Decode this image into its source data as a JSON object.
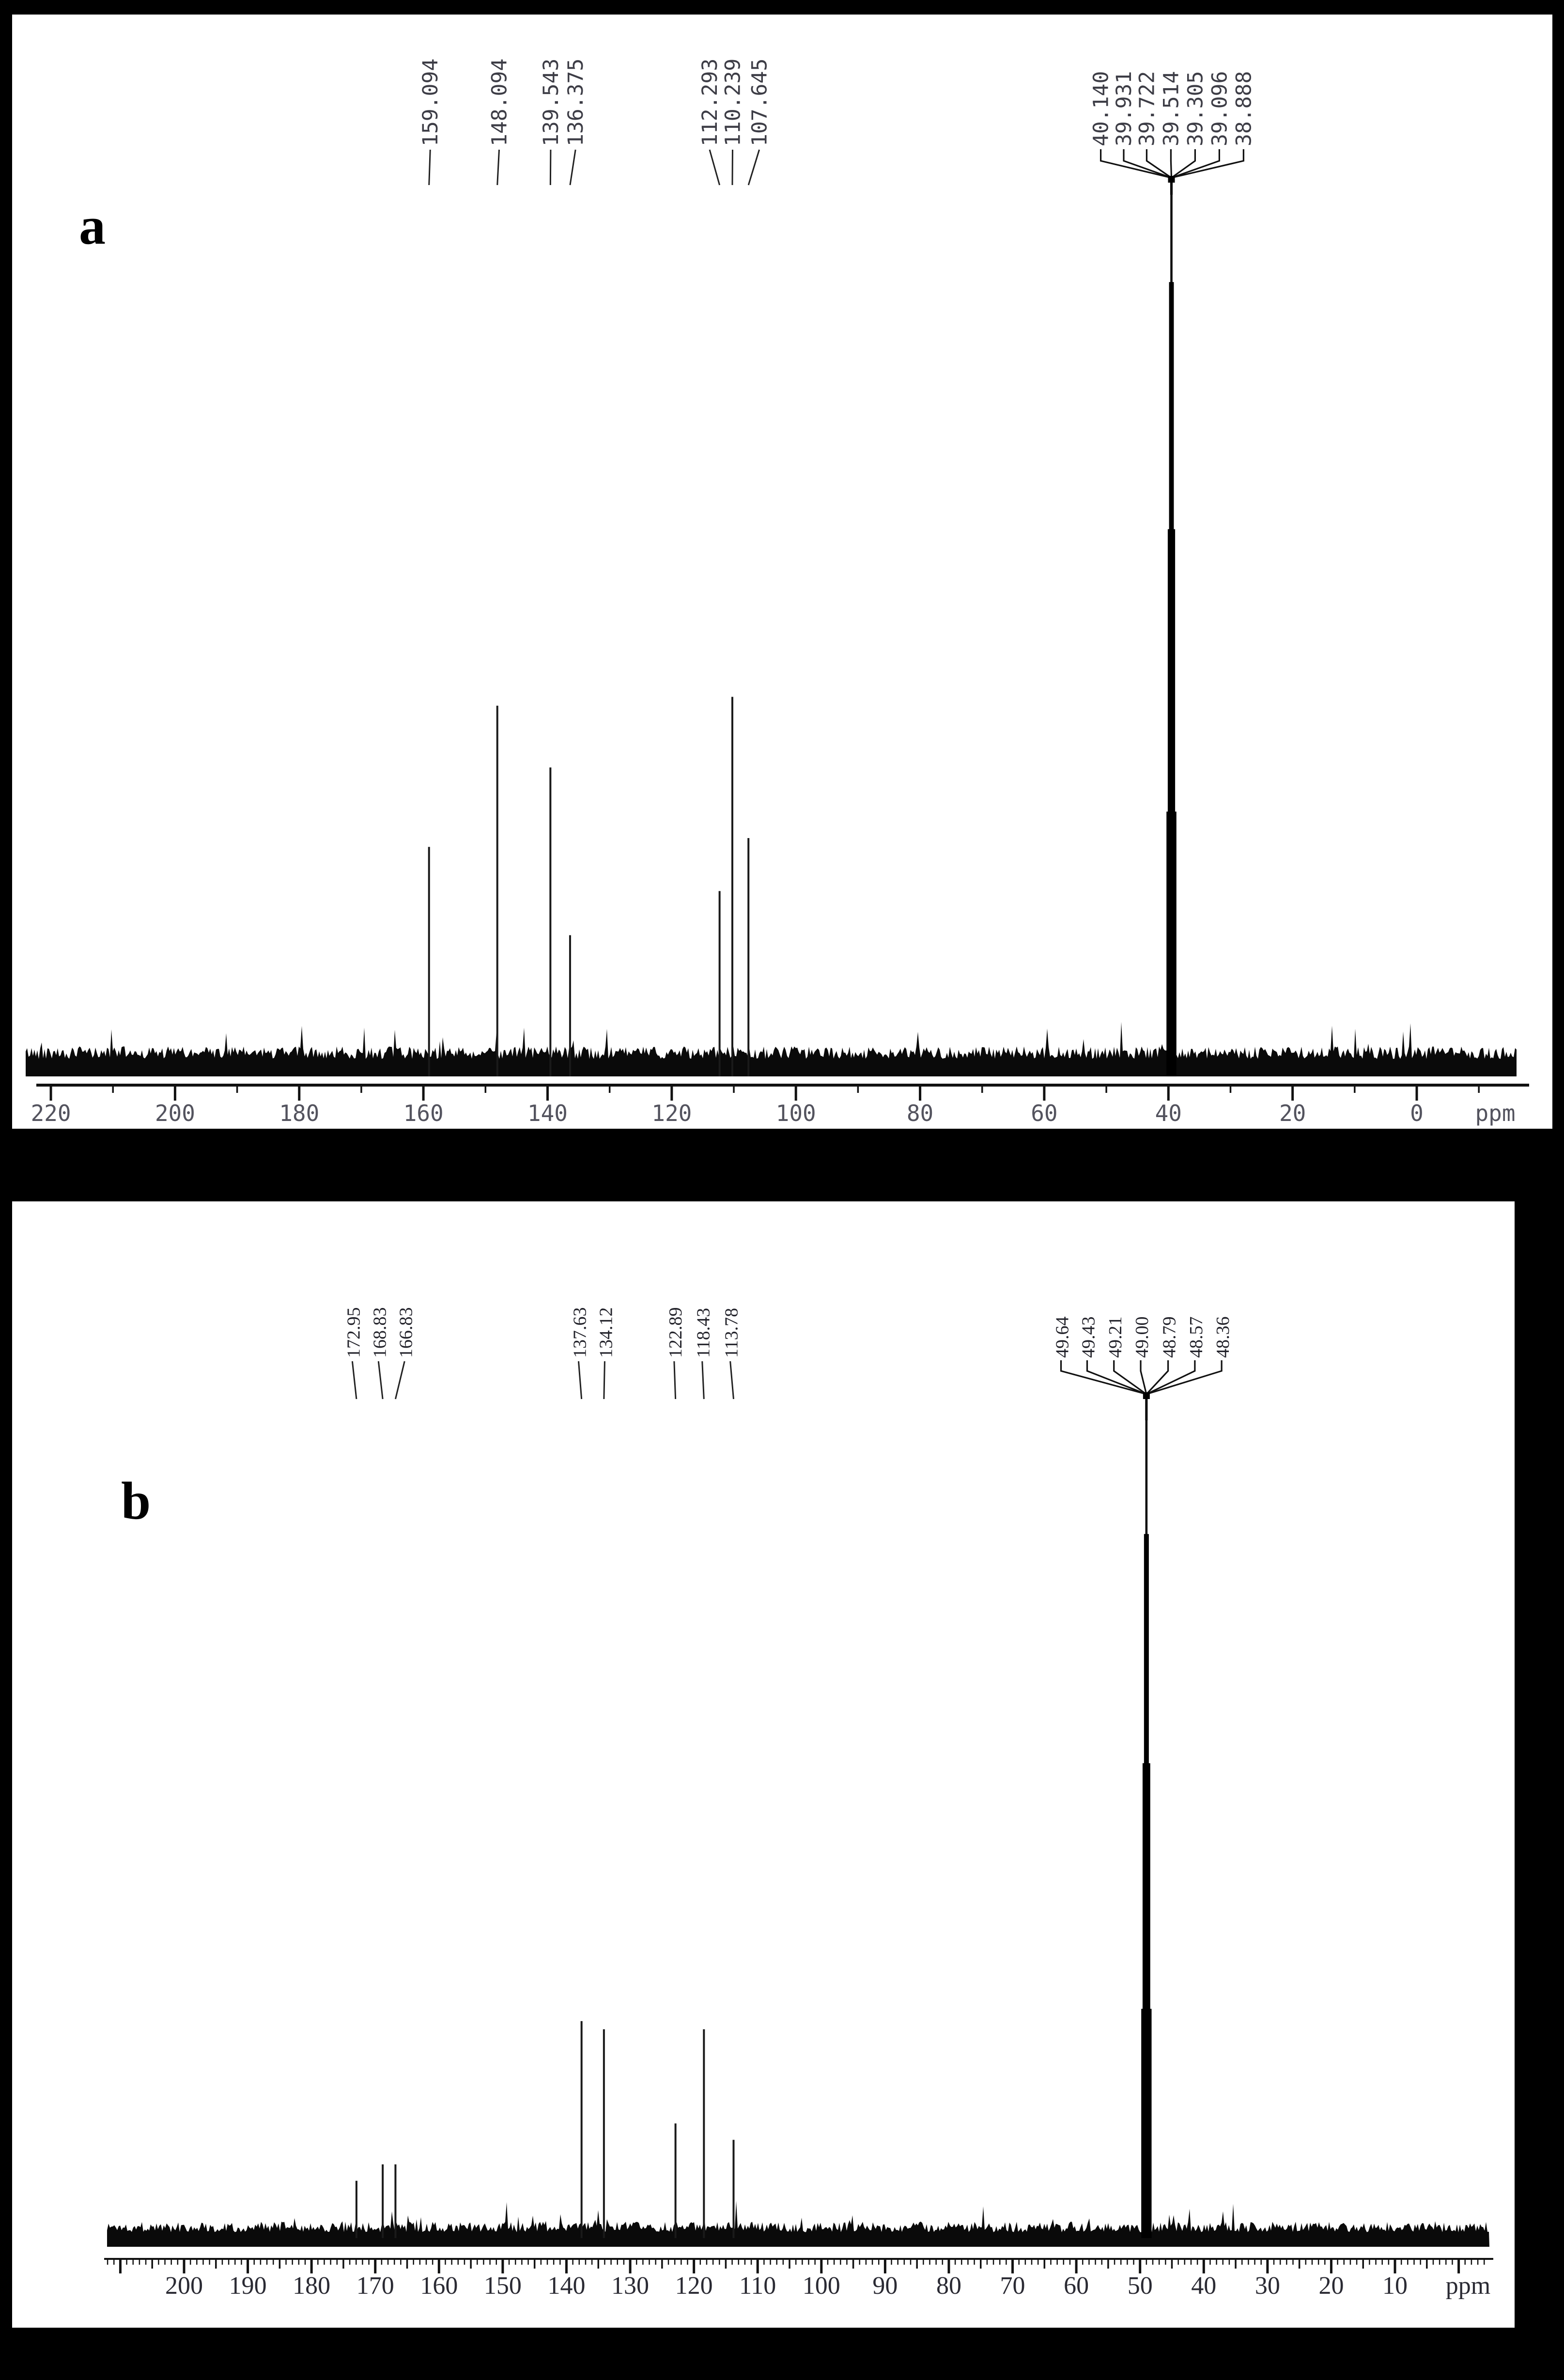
{
  "figure": {
    "background_color": "#000000",
    "panel_background_color": "#ffffff",
    "ink_color": "#111111"
  },
  "chart_data": [
    {
      "type": "line",
      "title": "13C NMR spectrum (panel a)",
      "panel_label": "a",
      "xlabel": "ppm",
      "x_axis": {
        "range_ppm": [
          222,
          -12
        ],
        "major_tick_step": 20,
        "minor_tick_step": 10,
        "tick_labels": [
          "220",
          "200",
          "180",
          "160",
          "140",
          "120",
          "100",
          "80",
          "60",
          "40",
          "20",
          "0"
        ],
        "unit_label": "ppm",
        "tick_style": "coarse",
        "grid": false
      },
      "peaks": [
        {
          "ppm": 159.094,
          "label": "159.094",
          "rel_height": 0.26,
          "label_ppm": 158.9
        },
        {
          "ppm": 148.094,
          "label": "148.094",
          "rel_height": 0.42,
          "label_ppm": 147.8
        },
        {
          "ppm": 139.543,
          "label": "139.543",
          "rel_height": 0.35,
          "label_ppm": 139.5
        },
        {
          "ppm": 136.375,
          "label": "136.375",
          "rel_height": 0.16,
          "label_ppm": 135.5
        },
        {
          "ppm": 112.293,
          "label": "112.293",
          "rel_height": 0.21,
          "label_ppm": 113.9
        },
        {
          "ppm": 110.239,
          "label": "110.239",
          "rel_height": 0.43,
          "label_ppm": 110.2
        },
        {
          "ppm": 107.645,
          "label": "107.645",
          "rel_height": 0.27,
          "label_ppm": 105.9
        }
      ],
      "solvent_cluster": {
        "labels": [
          "40.140",
          "39.931",
          "39.722",
          "39.514",
          "39.305",
          "39.096",
          "38.888"
        ],
        "ppms": [
          40.14,
          39.931,
          39.722,
          39.514,
          39.305,
          39.096,
          38.888
        ],
        "rel_heights": [
          0.3,
          0.62,
          0.9,
          1.0,
          0.9,
          0.62,
          0.3
        ],
        "label_ppms": [
          50.9,
          47.2,
          43.5,
          39.6,
          35.7,
          31.8,
          27.9
        ],
        "center_ppm": 39.514
      },
      "noise": "dense"
    },
    {
      "type": "line",
      "title": "13C NMR spectrum (panel b)",
      "panel_label": "b",
      "xlabel": "ppm",
      "x_axis": {
        "range_ppm": [
          212,
          -5
        ],
        "major_tick_step": 10,
        "minor_tick_step": 1,
        "medium_tick_step": 5,
        "tick_labels": [
          "200",
          "190",
          "180",
          "170",
          "160",
          "150",
          "140",
          "130",
          "120",
          "110",
          "100",
          "90",
          "80",
          "70",
          "60",
          "50",
          "40",
          "30",
          "20",
          "10"
        ],
        "unit_label": "ppm",
        "tick_style": "fine",
        "grid": false
      },
      "peaks": [
        {
          "ppm": 172.95,
          "label": "172.95",
          "rel_height": 0.07,
          "label_ppm": 173.6
        },
        {
          "ppm": 168.83,
          "label": "168.83",
          "rel_height": 0.09,
          "label_ppm": 169.5
        },
        {
          "ppm": 166.83,
          "label": "166.83",
          "rel_height": 0.09,
          "label_ppm": 165.4
        },
        {
          "ppm": 137.63,
          "label": "137.63",
          "rel_height": 0.265,
          "label_ppm": 138.1
        },
        {
          "ppm": 134.12,
          "label": "134.12",
          "rel_height": 0.255,
          "label_ppm": 134.0
        },
        {
          "ppm": 122.89,
          "label": "122.89",
          "rel_height": 0.14,
          "label_ppm": 123.1
        },
        {
          "ppm": 118.43,
          "label": "118.43",
          "rel_height": 0.255,
          "label_ppm": 118.7
        },
        {
          "ppm": 113.78,
          "label": "113.78",
          "rel_height": 0.12,
          "label_ppm": 114.3
        }
      ],
      "solvent_cluster": {
        "labels": [
          "49.64",
          "49.43",
          "49.21",
          "49.00",
          "48.79",
          "48.57",
          "48.36"
        ],
        "ppms": [
          49.64,
          49.43,
          49.21,
          49.0,
          48.79,
          48.57,
          48.36
        ],
        "rel_heights": [
          0.28,
          0.58,
          0.86,
          1.0,
          0.86,
          0.58,
          0.28
        ],
        "label_ppms": [
          62.4,
          58.3,
          54.1,
          49.9,
          45.6,
          41.4,
          37.2
        ],
        "center_ppm": 49.0
      },
      "noise": "light"
    }
  ]
}
